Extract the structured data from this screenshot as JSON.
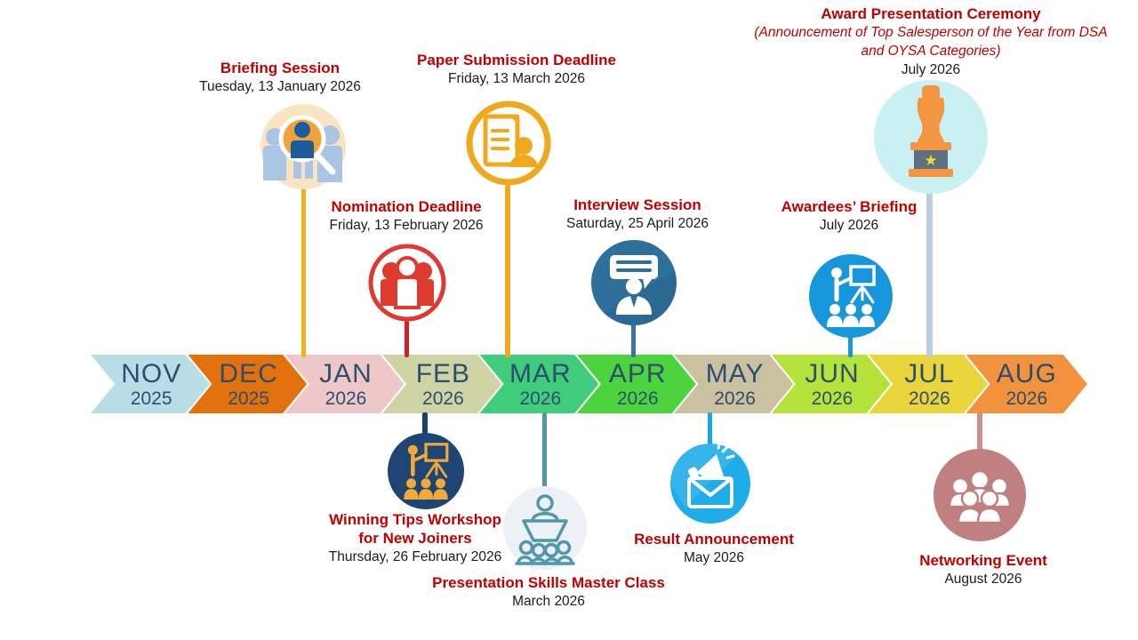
{
  "timeline": {
    "text_color": "#2e4e6d",
    "months": [
      {
        "label": "NOV",
        "year": "2025",
        "color": "#b8dde7"
      },
      {
        "label": "DEC",
        "year": "2025",
        "color": "#e2700c"
      },
      {
        "label": "JAN",
        "year": "2026",
        "color": "#eec7c9"
      },
      {
        "label": "FEB",
        "year": "2026",
        "color": "#cdd3a3"
      },
      {
        "label": "MAR",
        "year": "2026",
        "color": "#3fcd7c"
      },
      {
        "label": "APR",
        "year": "2026",
        "color": "#4bd43d"
      },
      {
        "label": "MAY",
        "year": "2026",
        "color": "#c9c1a0"
      },
      {
        "label": "JUN",
        "year": "2026",
        "color": "#b5e33b"
      },
      {
        "label": "JUL",
        "year": "2026",
        "color": "#e9d43c"
      },
      {
        "label": "AUG",
        "year": "2026",
        "color": "#f2923c"
      }
    ]
  },
  "events": [
    {
      "title": "Briefing Session",
      "date": "Tuesday, 13 January 2026",
      "position": "above",
      "icon": "audience-search-icon",
      "connector_color": "#f2b21b"
    },
    {
      "title": "Nomination Deadline",
      "date": "Friday, 13 February 2026",
      "position": "above",
      "icon": "people-group-icon",
      "connector_color": "#cf2127"
    },
    {
      "title": "Paper Submission Deadline",
      "date": "Friday, 13 March 2026",
      "position": "above",
      "icon": "document-person-icon",
      "connector_color": "#f0a81e"
    },
    {
      "title": "Interview Session",
      "date": "Saturday, 25 April 2026",
      "position": "above",
      "icon": "speech-bubble-person-icon",
      "connector_color": "#4471a3"
    },
    {
      "title": "Awardees’ Briefing",
      "date": "July 2026",
      "position": "above",
      "icon": "presenter-board-icon",
      "connector_color": "#1898dc"
    },
    {
      "title": "Award Presentation Ceremony",
      "subtitle": "(Announcement of Top Salesperson of the Year from DSA and OYSA Categories)",
      "date": "July 2026",
      "position": "above",
      "icon": "trophy-statue-icon",
      "connector_color": "#b9cede"
    },
    {
      "title": "Winning Tips Workshop for New Joiners",
      "date": "Thursday, 26 February 2026",
      "position": "below",
      "icon": "presenter-board-icon",
      "connector_color": "#1e3f6e"
    },
    {
      "title": "Presentation Skills Master Class",
      "date": "March 2026",
      "position": "below",
      "icon": "speaker-podium-audience-icon",
      "connector_color": "#4f98a9"
    },
    {
      "title": "Result Announcement",
      "date": "May 2026",
      "position": "below",
      "icon": "megaphone-envelope-icon",
      "connector_color": "#19a7e4"
    },
    {
      "title": "Networking Event",
      "date": "August 2026",
      "position": "below",
      "icon": "people-crowd-icon",
      "connector_color": "#cb8f8e"
    }
  ],
  "colors": {
    "event_title_red": "#c00000",
    "date_text": "#1b1b1b",
    "month_text": "#2e4e6d",
    "briefing_icon_bg": "#f9e4c2",
    "nomination_red": "#dd3a30",
    "paper_orange": "#f0a81e",
    "interview_blue": "#2e6f9c",
    "awardees_blue": "#1697dc",
    "trophy_bg": "#c9f0f2",
    "trophy_orange": "#f4953f",
    "winning_navy": "#1e4573",
    "winning_gold": "#f2a93b",
    "masterclass_teal": "#4f98a9",
    "result_cyan": "#1fade9",
    "networking_rose": "#bf807f"
  }
}
